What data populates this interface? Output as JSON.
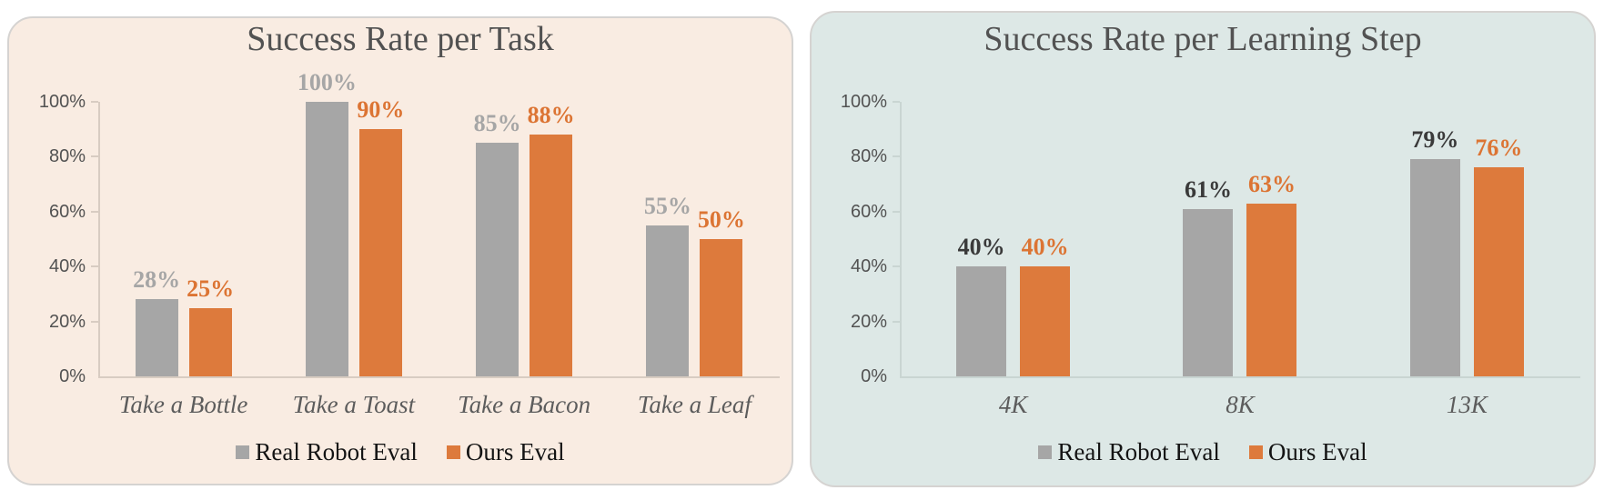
{
  "page": {
    "background": "#ffffff",
    "panel_border_color": "#d5d3d1"
  },
  "chart_data": [
    {
      "type": "bar",
      "title": "Success Rate per Task",
      "panel_bg": "#f9ece2",
      "axis_color": "#d8ccc2",
      "grid": false,
      "legend_position": "bottom",
      "categories": [
        "Take a Bottle",
        "Take a Toast",
        "Take a Bacon",
        "Take a Leaf"
      ],
      "series": [
        {
          "name": "Real Robot Eval",
          "color": "#a6a6a6",
          "label_color": "#a6a6a6",
          "values": [
            28,
            100,
            85,
            55
          ],
          "labels": [
            "28%",
            "100%",
            "85%",
            "55%"
          ]
        },
        {
          "name": "Ours Eval",
          "color": "#dd7a3c",
          "label_color": "#dc7433",
          "values": [
            25,
            90,
            88,
            50
          ],
          "labels": [
            "25%",
            "90%",
            "88%",
            "50%"
          ]
        }
      ],
      "y_axis": {
        "min": 0,
        "max": 100,
        "ticks": [
          "0%",
          "20%",
          "40%",
          "60%",
          "80%",
          "100%"
        ]
      }
    },
    {
      "type": "bar",
      "title": "Success Rate per Learning Step",
      "panel_bg": "#dde8e6",
      "axis_color": "#c9d5d2",
      "grid": false,
      "legend_position": "bottom",
      "categories": [
        "4K",
        "8K",
        "13K"
      ],
      "series": [
        {
          "name": "Real Robot Eval",
          "color": "#a6a6a6",
          "label_color": "#3a3a3a",
          "values": [
            40,
            61,
            79
          ],
          "labels": [
            "40%",
            "61%",
            "79%"
          ]
        },
        {
          "name": "Ours Eval",
          "color": "#dd7a3c",
          "label_color": "#dc7433",
          "values": [
            40,
            63,
            76
          ],
          "labels": [
            "40%",
            "63%",
            "76%"
          ]
        }
      ],
      "y_axis": {
        "min": 0,
        "max": 100,
        "ticks": [
          "0%",
          "20%",
          "40%",
          "60%",
          "80%",
          "100%"
        ]
      }
    }
  ]
}
